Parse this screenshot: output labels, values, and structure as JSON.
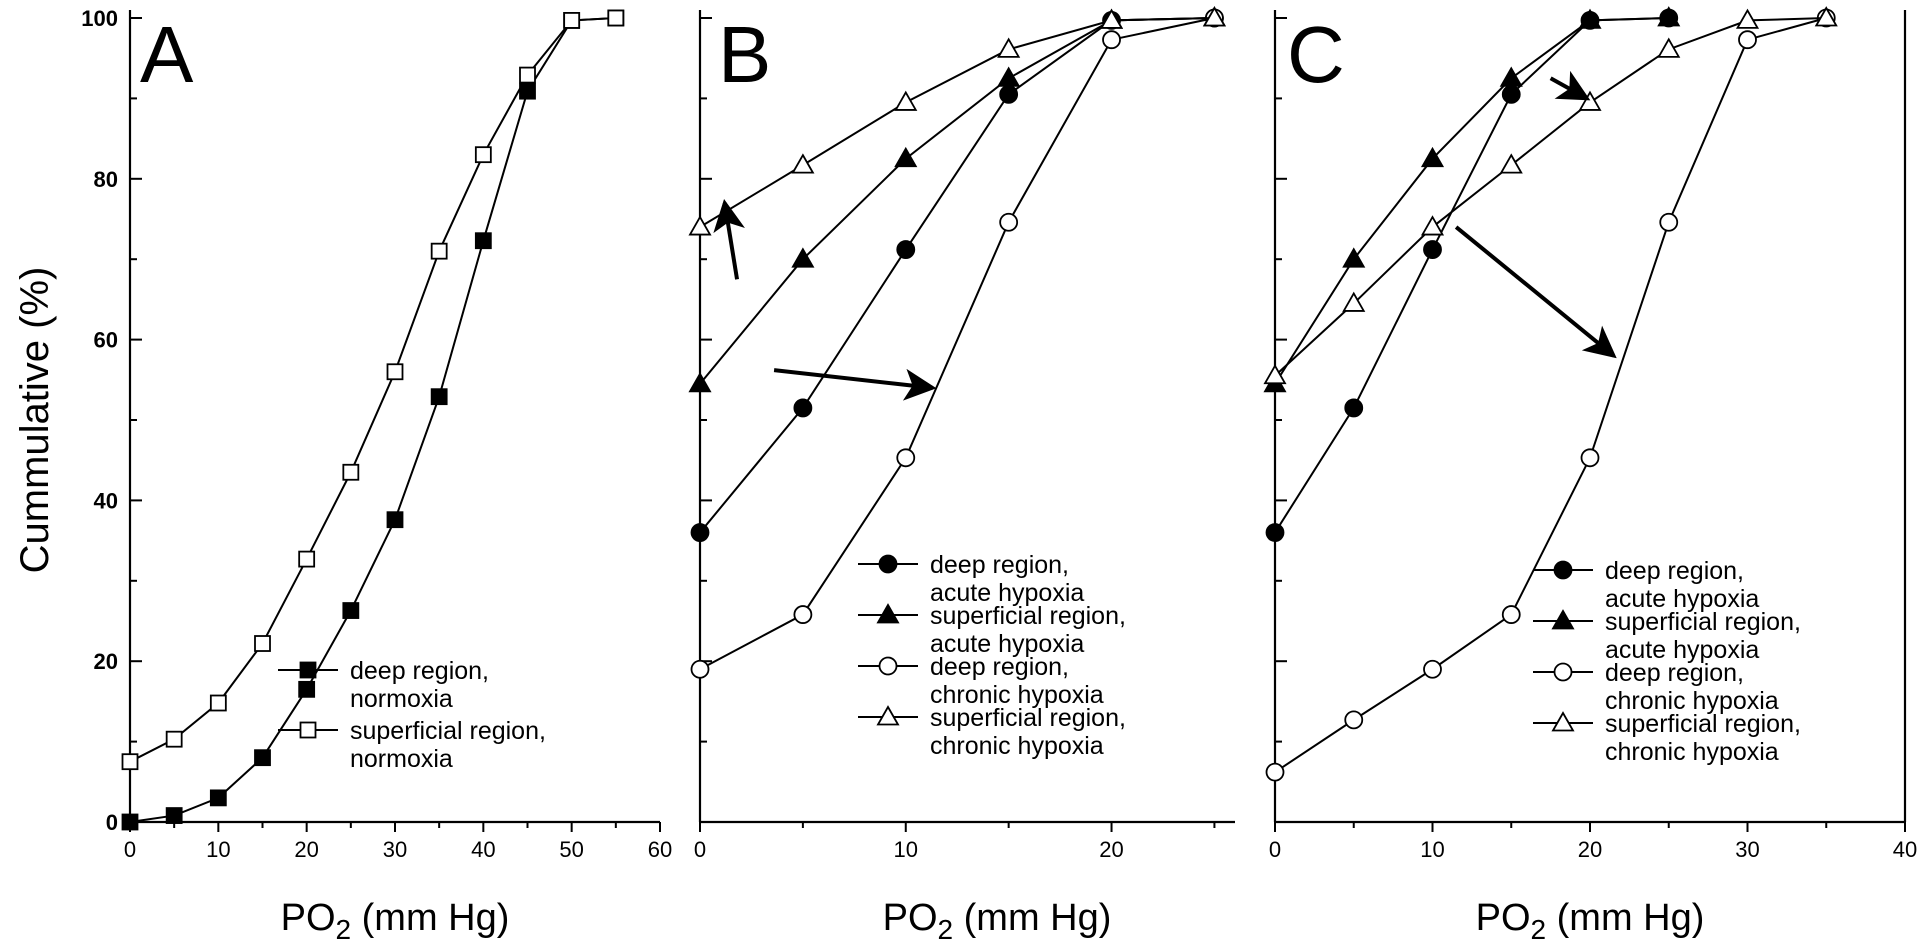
{
  "y_axis_label": "Cummulative (%)",
  "y_ticks": [
    "0",
    "20",
    "40",
    "60",
    "80",
    "100"
  ],
  "chart_data": [
    {
      "type": "line",
      "panel": "A",
      "xlabel": "PO2 (mm Hg)",
      "ylabel": "Cummulative (%)",
      "xlim": [
        0,
        60
      ],
      "ylim": [
        0,
        100
      ],
      "x_ticks": [
        "0",
        "10",
        "20",
        "30",
        "40",
        "50",
        "60"
      ],
      "series": [
        {
          "name": "deep region, normoxia",
          "legend_lines": [
            "deep region,",
            "normoxia"
          ],
          "marker": "square",
          "fill": "filled",
          "x": [
            0,
            5,
            10,
            15,
            20,
            25,
            30,
            35,
            40,
            45,
            50,
            55
          ],
          "y": [
            0,
            0.8,
            3,
            8,
            16.5,
            26.3,
            37.6,
            52.9,
            72.3,
            90.9,
            99.7,
            100
          ]
        },
        {
          "name": "superficial region, normoxia",
          "legend_lines": [
            "superficial region,",
            "normoxia"
          ],
          "marker": "square",
          "fill": "open",
          "x": [
            0,
            5,
            10,
            15,
            20,
            25,
            30,
            35,
            40,
            45,
            50,
            55
          ],
          "y": [
            7.5,
            10.3,
            14.8,
            22.2,
            32.7,
            43.5,
            56,
            71,
            83,
            92.9,
            99.7,
            100
          ]
        }
      ]
    },
    {
      "type": "line",
      "panel": "B",
      "xlabel": "PO2 (mm Hg)",
      "xlim": [
        0,
        26
      ],
      "ylim": [
        0,
        100
      ],
      "x_ticks": [
        "0",
        "10",
        "20"
      ],
      "series": [
        {
          "name": "deep region, acute hypoxia",
          "legend_lines": [
            "deep region,",
            "acute hypoxia"
          ],
          "marker": "circle",
          "fill": "filled",
          "x": [
            0,
            5,
            10,
            15,
            20,
            25
          ],
          "y": [
            36,
            51.5,
            71.2,
            90.5,
            99.7,
            100
          ]
        },
        {
          "name": "superficial region, acute hypoxia",
          "legend_lines": [
            "superficial region,",
            "acute hypoxia"
          ],
          "marker": "triangle",
          "fill": "filled",
          "x": [
            0,
            5,
            10,
            15,
            20,
            25
          ],
          "y": [
            54.5,
            70,
            82.5,
            92.5,
            99.7,
            100
          ]
        },
        {
          "name": "deep region, chronic hypoxia",
          "legend_lines": [
            "deep region,",
            "chronic hypoxia"
          ],
          "marker": "circle",
          "fill": "open",
          "x": [
            0,
            5,
            10,
            15,
            20,
            25
          ],
          "y": [
            19,
            25.8,
            45.3,
            74.6,
            97.3,
            100
          ]
        },
        {
          "name": "superficial region, chronic hypoxia",
          "legend_lines": [
            "superficial region,",
            "chronic hypoxia"
          ],
          "marker": "triangle",
          "fill": "open",
          "x": [
            0,
            5,
            10,
            15,
            20,
            25
          ],
          "y": [
            74,
            81.7,
            89.5,
            96.1,
            99.7,
            100
          ]
        }
      ],
      "arrows": [
        {
          "from": [
            1.8,
            67.5
          ],
          "to": [
            1.2,
            77
          ]
        },
        {
          "from": [
            3.6,
            56.2
          ],
          "to": [
            11.3,
            54
          ]
        }
      ]
    },
    {
      "type": "line",
      "panel": "C",
      "xlabel": "PO2 (mm Hg)",
      "xlim": [
        0,
        40
      ],
      "ylim": [
        0,
        100
      ],
      "x_ticks": [
        "0",
        "10",
        "20",
        "30",
        "40"
      ],
      "series": [
        {
          "name": "deep region, acute hypoxia",
          "legend_lines": [
            "deep region,",
            "acute hypoxia"
          ],
          "marker": "circle",
          "fill": "filled",
          "x": [
            0,
            5,
            10,
            15,
            20,
            25
          ],
          "y": [
            36,
            51.5,
            71.2,
            90.5,
            99.7,
            100
          ]
        },
        {
          "name": "superficial region, acute hypoxia",
          "legend_lines": [
            "superficial region,",
            "acute hypoxia"
          ],
          "marker": "triangle",
          "fill": "filled",
          "x": [
            0,
            5,
            10,
            15,
            20,
            25
          ],
          "y": [
            54.5,
            70,
            82.5,
            92.5,
            99.7,
            100
          ]
        },
        {
          "name": "deep region, chronic hypoxia",
          "legend_lines": [
            "deep region,",
            "chronic hypoxia"
          ],
          "marker": "circle",
          "fill": "open",
          "x": [
            0,
            5,
            10,
            15,
            20,
            25,
            30,
            35
          ],
          "y": [
            6.2,
            12.7,
            19,
            25.8,
            45.3,
            74.6,
            97.3,
            100
          ]
        },
        {
          "name": "superficial region, chronic hypoxia",
          "legend_lines": [
            "superficial region,",
            "chronic hypoxia"
          ],
          "marker": "triangle",
          "fill": "open",
          "x": [
            0,
            5,
            10,
            15,
            20,
            25,
            30,
            35
          ],
          "y": [
            55.5,
            64.5,
            74,
            81.7,
            89.5,
            96.1,
            99.7,
            100
          ]
        }
      ],
      "arrows": [
        {
          "from": [
            17.5,
            92.5
          ],
          "to": [
            19.8,
            90
          ]
        },
        {
          "from": [
            11.5,
            74
          ],
          "to": [
            21.5,
            58
          ]
        }
      ]
    }
  ]
}
